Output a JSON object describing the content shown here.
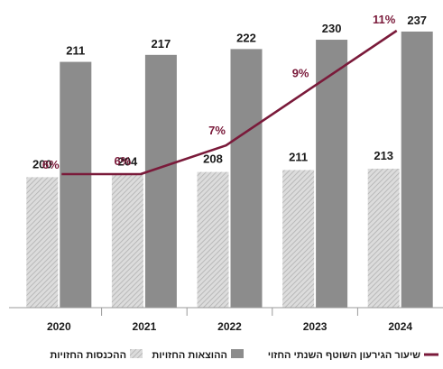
{
  "chart_data": {
    "type": "bar",
    "categories": [
      "2020",
      "2021",
      "2022",
      "2023",
      "2024"
    ],
    "series": [
      {
        "name": "ההכנסות החזויות",
        "kind": "bar",
        "style": "hatched-light-gray",
        "values": [
          200,
          204,
          208,
          211,
          213
        ]
      },
      {
        "name": "ההוצאות החזויות",
        "kind": "bar",
        "style": "solid-gray",
        "values": [
          211,
          217,
          222,
          230,
          237
        ]
      },
      {
        "name": "שיעור הגירעון השוטף השנתי החזוי",
        "kind": "line",
        "unit": "%",
        "values": [
          6,
          6,
          7,
          9,
          11
        ]
      }
    ],
    "value_labels": {
      "income": [
        "200",
        "204",
        "208",
        "211",
        "213"
      ],
      "expenses": [
        "211",
        "217",
        "222",
        "230",
        "237"
      ],
      "deficit": [
        "6%",
        "6%",
        "7%",
        "9%",
        "11%"
      ]
    },
    "legend": {
      "position": "bottom",
      "items": [
        {
          "label": "ההכנסות החזויות",
          "swatch": "hatched"
        },
        {
          "label": "ההוצאות החזויות",
          "swatch": "solid"
        },
        {
          "label": "שיעור הגירעון השוטף השנתי החזוי",
          "swatch": "line"
        }
      ]
    },
    "ylim": [
      0,
      240
    ],
    "line_ylim": [
      0,
      12
    ],
    "grid": false,
    "colors": {
      "expenses_bar": "#8c8c8c",
      "income_bar": "#dcdcdc",
      "income_hatch": "#b0b0b0",
      "line": "#7a1a3a",
      "text": "#1a1a1a"
    }
  }
}
